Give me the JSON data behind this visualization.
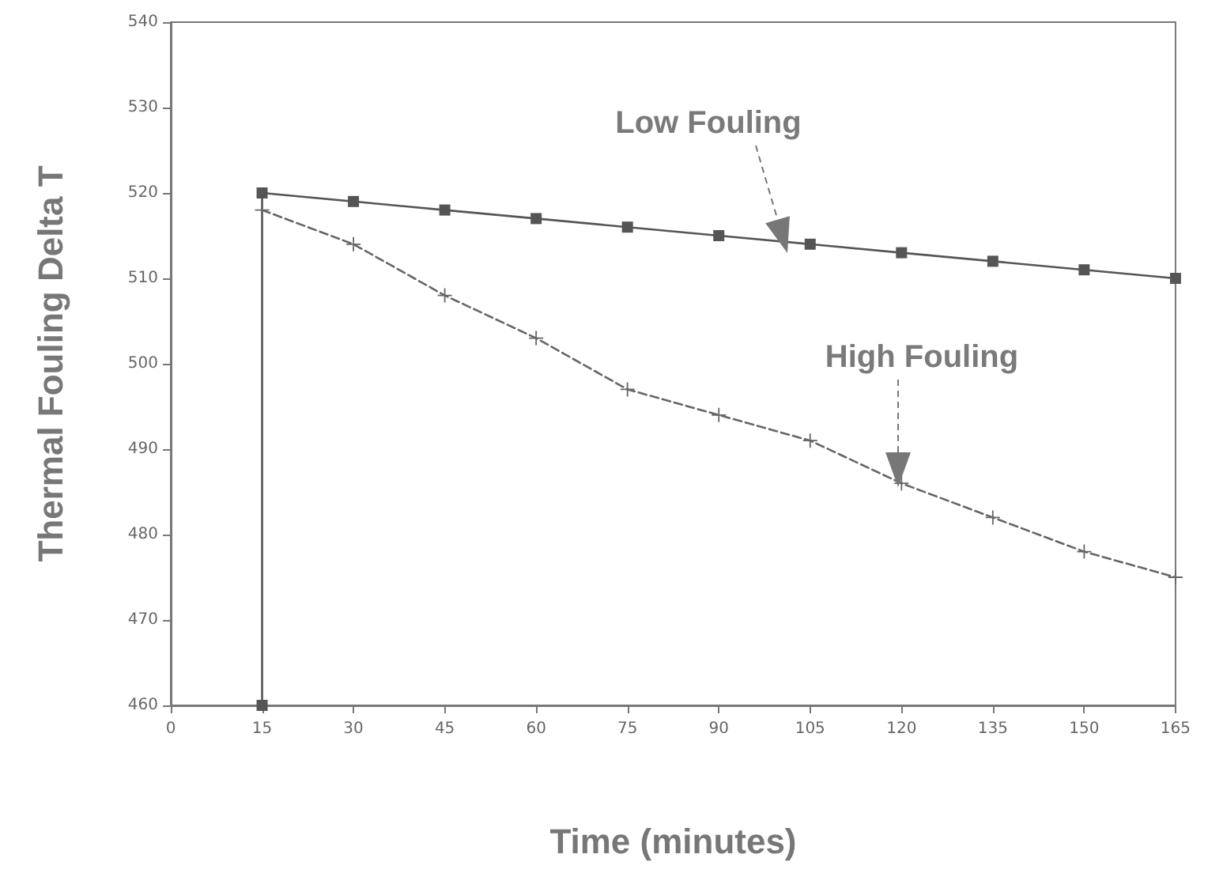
{
  "chart_data": {
    "type": "line",
    "xlabel": "Time (minutes)",
    "ylabel": "Thermal Fouling Delta T",
    "xlim": [
      0,
      165
    ],
    "xticks": [
      0,
      15,
      30,
      45,
      60,
      75,
      90,
      105,
      120,
      135,
      150,
      165
    ],
    "ylim": [
      460,
      540
    ],
    "yticks": [
      460,
      470,
      480,
      490,
      500,
      510,
      520,
      530,
      540
    ],
    "grid": false,
    "series": [
      {
        "color": "#555555",
        "marker": "square",
        "line_style": "solid",
        "x": [
          15,
          15,
          30,
          45,
          60,
          75,
          90,
          105,
          120,
          135,
          150,
          165
        ],
        "values": [
          460,
          520,
          519,
          518,
          517,
          516,
          515,
          514,
          513,
          512,
          511,
          510
        ]
      },
      {
        "color": "#666666",
        "marker": "cross",
        "line_style": "dashed",
        "x": [
          15,
          30,
          45,
          60,
          75,
          90,
          105,
          120,
          135,
          150,
          165
        ],
        "values": [
          518,
          514,
          508,
          503,
          497,
          494,
          491,
          486,
          482,
          478,
          475
        ]
      }
    ],
    "annotations": [
      "Low Fouling",
      "High Fouling"
    ]
  }
}
